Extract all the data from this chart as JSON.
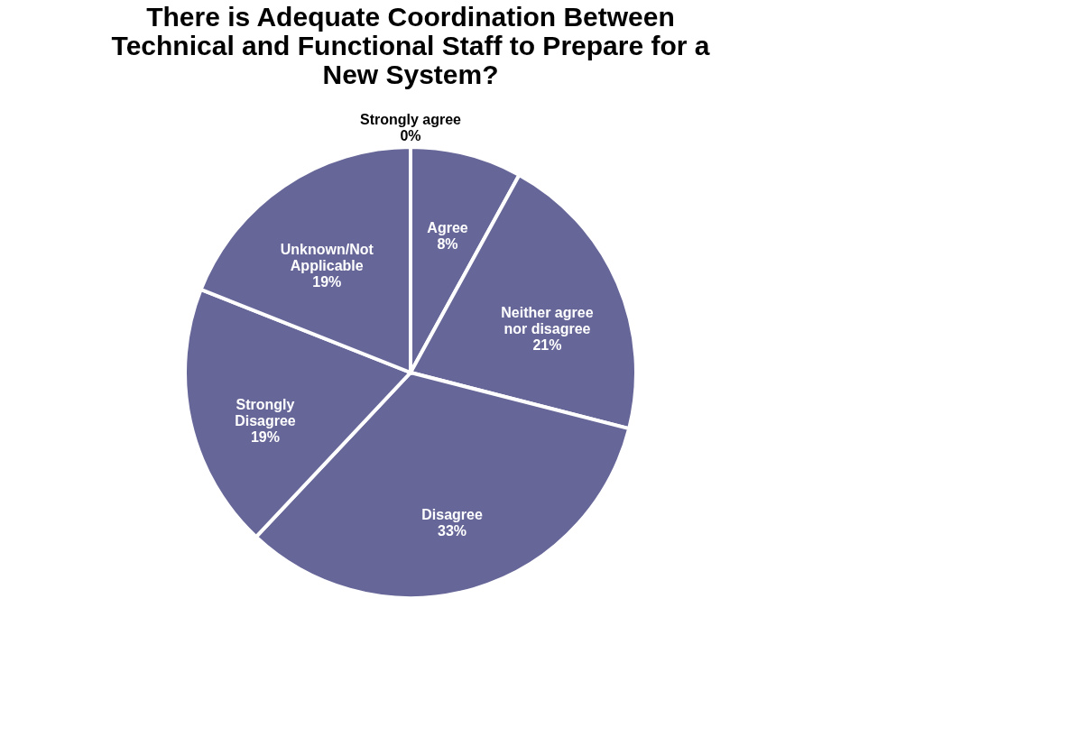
{
  "chart_data": {
    "type": "pie",
    "title": [
      "There is Adequate Coordination Between",
      "Technical and Functional Staff to Prepare for a",
      "New System?"
    ],
    "categories": [
      "Strongly agree",
      "Agree",
      "Neither agree nor disagree",
      "Disagree",
      "Strongly Disagree",
      "Unknown/Not Applicable"
    ],
    "values": [
      0,
      8,
      21,
      33,
      19,
      19
    ],
    "value_labels": [
      "0%",
      "8%",
      "21%",
      "33%",
      "19%",
      "19%"
    ],
    "colors": [
      "#666699",
      "#666699",
      "#666699",
      "#666699",
      "#666699",
      "#666699"
    ],
    "legend": false
  }
}
